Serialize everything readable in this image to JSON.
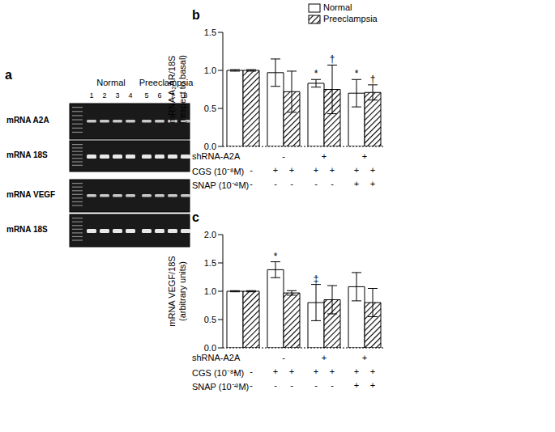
{
  "gel": {
    "title": "a",
    "groups": [
      {
        "label": "Normal",
        "lanes": [
          1,
          2,
          3,
          4
        ]
      },
      {
        "label": "Preeclampsia",
        "lanes": [
          5,
          6,
          7,
          8
        ]
      }
    ],
    "rows": [
      "mRNA A2A",
      "mRNA 18S",
      "mRNA VEGF",
      "mRNA 18S"
    ]
  },
  "chart_data": [
    {
      "type": "bar",
      "title": "b",
      "ylabel": "mRNA A₂AR/18S\n(respect to basal)",
      "ylim": [
        0,
        1.5
      ],
      "yticks": [
        {
          "value": 0,
          "label": "0.0"
        },
        0.5,
        {
          "value": 1,
          "label": "1.0"
        },
        1.5
      ],
      "legend": "top",
      "series": [
        {
          "name": "Normal",
          "color": "#ffffff",
          "marker": "none",
          "values": [
            1.0,
            0.97,
            0.83,
            0.7
          ],
          "errors": [
            0.01,
            0.18,
            0.05,
            0.18
          ],
          "annotations": [
            null,
            null,
            "*",
            "*"
          ]
        },
        {
          "name": "Preeclampsia",
          "color": "#000000",
          "marker": "hatch",
          "values": [
            1.0,
            0.72,
            0.75,
            0.71
          ],
          "errors": [
            0.01,
            0.27,
            0.32,
            0.1
          ],
          "annotations": [
            null,
            null,
            "†",
            "†"
          ]
        }
      ],
      "treatments": [
        {
          "label": "shRNA-A2A",
          "signs": [
            null,
            "-",
            "+",
            "+"
          ]
        },
        {
          "label": "CGS (10⁻⁸M)",
          "signs": [
            "-",
            "-",
            "+",
            "+",
            "+",
            "+",
            "+",
            "+"
          ]
        },
        {
          "label": "SNAP (10⁻⁹M)",
          "signs": [
            "-",
            "-",
            "-",
            "-",
            "-",
            "-",
            "+",
            "+"
          ]
        }
      ]
    },
    {
      "type": "bar",
      "title": "c",
      "ylabel": "mRNA VEGF/18S\n(arbitrary units)",
      "ylim": [
        0,
        2
      ],
      "yticks": [
        {
          "value": 0,
          "label": "0.0"
        },
        0.5,
        {
          "value": 1,
          "label": "1.0"
        },
        1.5,
        {
          "value": 2,
          "label": "2.0"
        }
      ],
      "series": [
        {
          "name": "Normal",
          "color": "#ffffff",
          "marker": "none",
          "values": [
            1.0,
            1.38,
            0.8,
            1.08
          ],
          "errors": [
            0.01,
            0.14,
            0.32,
            0.25
          ],
          "annotations": [
            null,
            "*",
            "‡",
            null
          ]
        },
        {
          "name": "Preeclampsia",
          "color": "#000000",
          "marker": "hatch",
          "values": [
            1.0,
            0.97,
            0.85,
            0.8
          ],
          "errors": [
            0.01,
            0.04,
            0.25,
            0.25
          ],
          "annotations": [
            null,
            null,
            null,
            null
          ]
        }
      ],
      "treatments": [
        {
          "label": "shRNA-A2A",
          "signs": [
            null,
            "-",
            "+",
            "+"
          ]
        },
        {
          "label": "CGS (10⁻⁸M)",
          "signs": [
            "-",
            "-",
            "+",
            "+",
            "+",
            "+",
            "+",
            "+"
          ]
        },
        {
          "label": "SNAP (10⁻⁹M)",
          "signs": [
            "-",
            "-",
            "-",
            "-",
            "-",
            "-",
            "+",
            "+"
          ]
        }
      ]
    }
  ]
}
